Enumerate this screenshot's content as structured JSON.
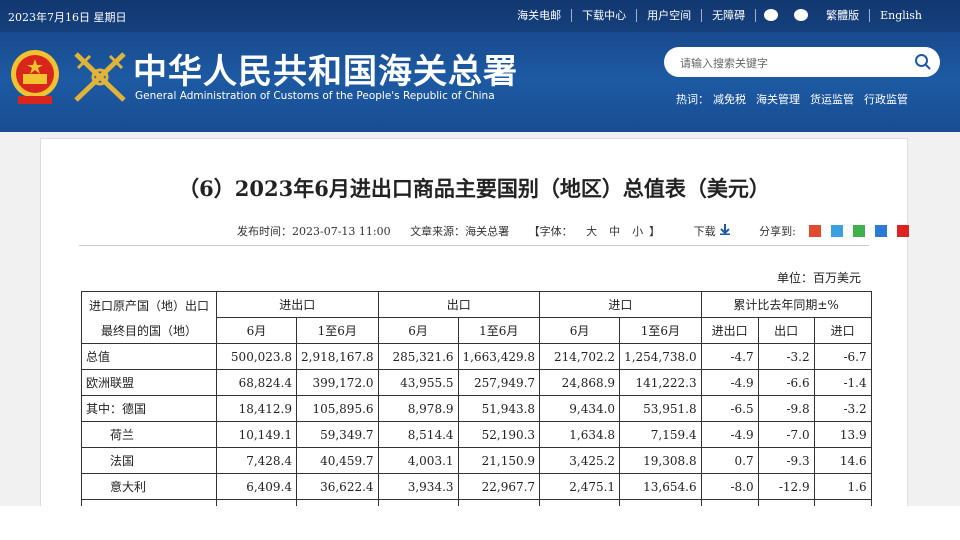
{
  "top_bar": {
    "date": "2023年7月16日 星期日",
    "links": [
      "海关电邮",
      "下载中心",
      "用户空间",
      "无障碍"
    ],
    "links_after": [
      "繁體版",
      "English"
    ]
  },
  "header": {
    "title_cn": "中华人民共和国海关总署",
    "title_en": "General Administration of Customs of the People's Republic of China",
    "search_placeholder": "请输入搜索关键字",
    "hot_label": "热词：",
    "hot_words": [
      "减免税",
      "海关管理",
      "货运监管",
      "行政监管"
    ]
  },
  "article": {
    "title": "（6）2023年6月进出口商品主要国别（地区）总值表（美元）",
    "meta": {
      "publish_label": "发布时间：",
      "publish_time": "2023-07-13 11:00",
      "source_label": "文章来源：",
      "source": "海关总署",
      "font_label": "【字体：",
      "font_sizes": [
        "大",
        "中",
        "小"
      ],
      "font_end": "】",
      "download": "下载",
      "share": "分享到:"
    },
    "unit": "单位：百万美元",
    "table": {
      "corner": [
        "进口原产国（地）出口",
        "最终目的国（地）"
      ],
      "groups": [
        "进出口",
        "出口",
        "进口",
        "累计比去年同期±%"
      ],
      "subheads": [
        "6月",
        "1至6月",
        "6月",
        "1至6月",
        "6月",
        "1至6月",
        "进出口",
        "出口",
        "进口"
      ],
      "rows": [
        [
          "总值",
          "500,023.8",
          "2,918,167.8",
          "285,321.6",
          "1,663,429.8",
          "214,702.2",
          "1,254,738.0",
          "-4.7",
          "-3.2",
          "-6.7"
        ],
        [
          "欧洲联盟",
          "68,824.4",
          "399,172.0",
          "43,955.5",
          "257,949.7",
          "24,868.9",
          "141,222.3",
          "-4.9",
          "-6.6",
          "-1.4"
        ],
        [
          "其中：德国",
          "18,412.9",
          "105,895.6",
          "8,978.9",
          "51,943.8",
          "9,434.0",
          "53,951.8",
          "-6.5",
          "-9.8",
          "-3.2"
        ],
        [
          "荷兰",
          "10,149.1",
          "59,349.7",
          "8,514.4",
          "52,190.3",
          "1,634.8",
          "7,159.4",
          "-4.9",
          "-7.0",
          "13.9"
        ],
        [
          "法国",
          "7,428.4",
          "40,459.7",
          "4,003.1",
          "21,150.9",
          "3,425.2",
          "19,308.8",
          "0.7",
          "-9.3",
          "14.6"
        ],
        [
          "意大利",
          "6,409.4",
          "36,622.4",
          "3,934.3",
          "22,967.7",
          "2,475.1",
          "13,654.6",
          "-8.0",
          "-12.9",
          "1.6"
        ]
      ]
    }
  }
}
